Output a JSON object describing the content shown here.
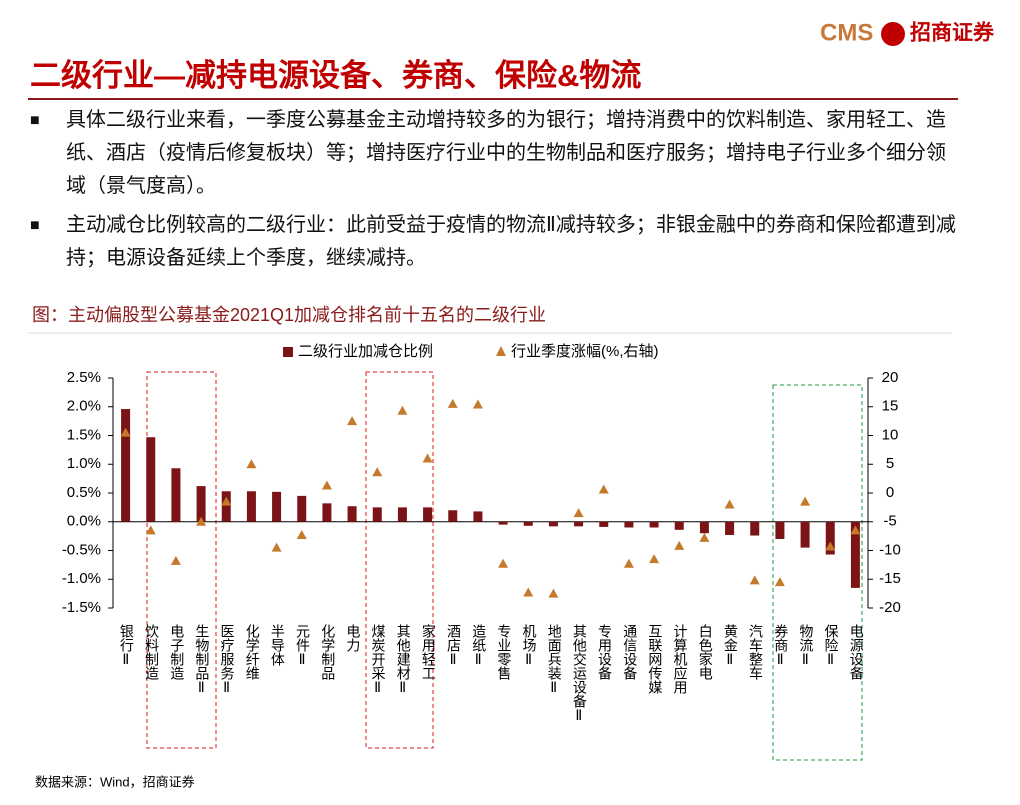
{
  "header": {
    "logo_en": "CMS",
    "logo_cn": "招商证券"
  },
  "title": "二级行业—减持电源设备、券商、保险&物流",
  "bullets": [
    "具体二级行业来看，一季度公募基金主动增持较多的为银行；增持消费中的饮料制造、家用轻工、造纸、酒店（疫情后修复板块）等；增持医疗行业中的生物制品和医疗服务；增持电子行业多个细分领域（景气度高）。",
    "主动减仓比例较高的二级行业：此前受益于疫情的物流Ⅱ减持较多；非银金融中的券商和保险都遭到减持；电源设备延续上个季度，继续减持。"
  ],
  "chart_data": {
    "type": "bar",
    "title": "图：主动偏股型公募基金2021Q1加减仓排名前十五名的二级行业",
    "categories": [
      "银行Ⅱ",
      "饮料制造",
      "电子制造",
      "生物制品Ⅱ",
      "医疗服务Ⅱ",
      "化学纤维",
      "半导体",
      "元件Ⅱ",
      "化学制品",
      "电力",
      "煤炭开采Ⅱ",
      "其他建材Ⅱ",
      "家用轻工",
      "酒店Ⅱ",
      "造纸Ⅱ",
      "专业零售",
      "机场Ⅱ",
      "地面兵装Ⅱ",
      "其他交运设备Ⅱ",
      "专用设备",
      "通信设备",
      "互联网传媒",
      "计算机应用",
      "白色家电",
      "黄金Ⅱ",
      "汽车整车",
      "券商Ⅱ",
      "物流Ⅱ",
      "保险Ⅱ",
      "电源设备"
    ],
    "series": [
      {
        "name": "二级行业加减仓比例",
        "type": "bar",
        "color": "#7b1416",
        "values": [
          1.96,
          1.47,
          0.93,
          0.62,
          0.53,
          0.53,
          0.52,
          0.45,
          0.32,
          0.27,
          0.25,
          0.25,
          0.25,
          0.2,
          0.18,
          -0.05,
          -0.07,
          -0.08,
          -0.08,
          -0.09,
          -0.1,
          -0.1,
          -0.14,
          -0.2,
          -0.23,
          -0.24,
          -0.3,
          -0.45,
          -0.57,
          -1.15
        ]
      },
      {
        "name": "行业季度涨幅(%,右轴)",
        "type": "scatter",
        "axis": "y2",
        "color": "#c5792a",
        "values": [
          10.5,
          -6.5,
          -11.8,
          -5,
          -1.5,
          5,
          -9.5,
          -7.3,
          1.3,
          12.5,
          3.6,
          14.3,
          6,
          15.5,
          15.4,
          -12.3,
          -17.3,
          -17.5,
          -3.5,
          0.6,
          -12.3,
          -11.5,
          -9.2,
          -7.8,
          -2,
          -15.2,
          -15.5,
          -1.5,
          -9.3,
          -6.5
        ]
      }
    ],
    "ylim": [
      -1.5,
      2.5
    ],
    "yticks": [
      {
        "value": 2.5,
        "label": "2.5%"
      },
      {
        "value": 2,
        "label": "2.0%"
      },
      {
        "value": 1.5,
        "label": "1.5%"
      },
      {
        "value": 1,
        "label": "1.0%"
      },
      {
        "value": 0.5,
        "label": "0.5%"
      },
      {
        "value": 0,
        "label": "0.0%"
      },
      {
        "value": -0.5,
        "label": "-0.5%"
      },
      {
        "value": -1,
        "label": "-1.0%"
      },
      {
        "value": -1.5,
        "label": "-1.5%"
      }
    ],
    "y2lim": [
      -20,
      20
    ],
    "y2ticks": [
      20,
      15,
      10,
      5,
      0,
      -5,
      -10,
      -15,
      -20
    ],
    "legend": "top",
    "source": "数据来源：Wind，招商证券"
  }
}
